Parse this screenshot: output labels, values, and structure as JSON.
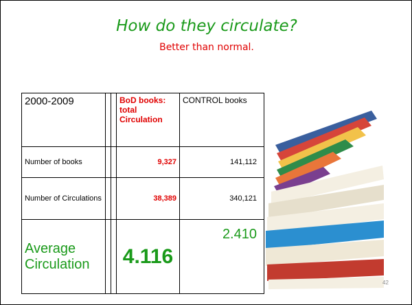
{
  "header": {
    "title": "How do they circulate?",
    "subtitle": "Better than normal."
  },
  "table": {
    "rows": [
      [
        "2000-2009",
        "BoD books: total Circulation",
        "CONTROL books"
      ],
      [
        "Number of books",
        "9,327",
        "141,112"
      ],
      [
        "Number of Circulations",
        "38,389",
        "340,121"
      ],
      [
        "Average Circulation",
        "4.116",
        "2.410"
      ]
    ]
  },
  "page_number": "42"
}
